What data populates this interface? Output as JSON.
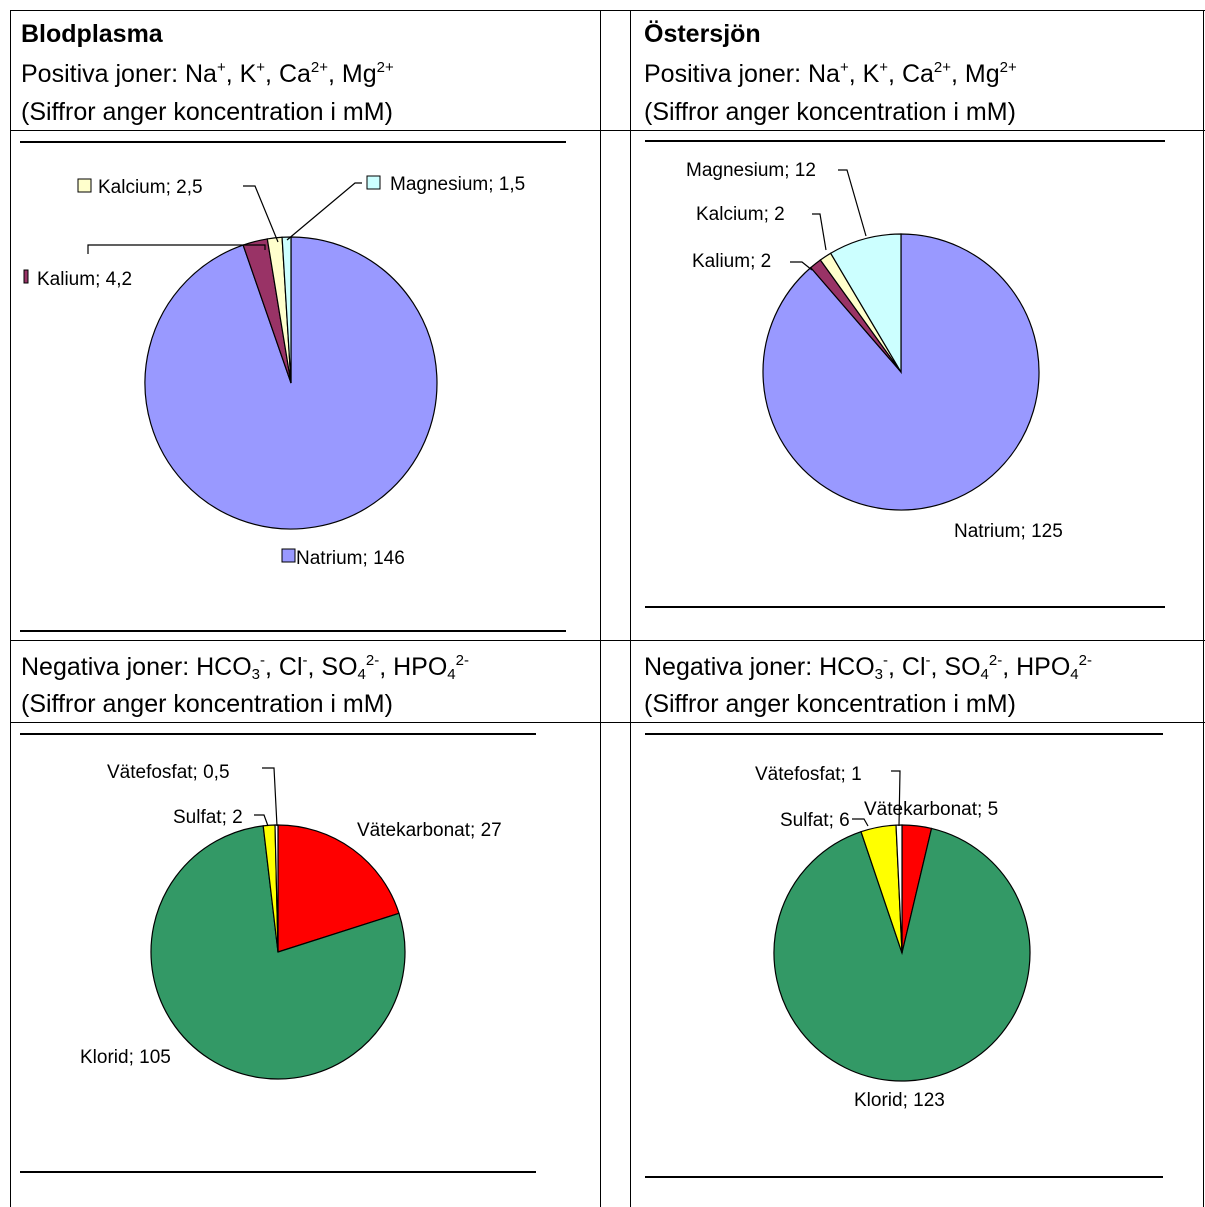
{
  "left_col": {
    "title": "Blodplasma",
    "pos_line": {
      "prefix": "Positiva joner: Na",
      "a": "+",
      "b": ", K",
      "c": "+",
      "d": ", Ca",
      "e": "2+",
      "f": ", Mg",
      "g": "2+"
    },
    "unit_note": "(Siffror anger koncentration i mM)",
    "neg_line": {
      "prefix": "Negativa joner: HCO",
      "s1": "3",
      "s1sup": "-",
      "t1": ", Cl",
      "t1sup": "-",
      "t2": ", SO",
      "s2": "4",
      "s2sup": "2-",
      "t3": ", HPO",
      "s3": "4",
      "s3sup": "2-"
    },
    "unit_note_2": "(Siffror anger koncentration i mM)"
  },
  "right_col": {
    "title": "Östersjön",
    "pos_line": {
      "prefix": "Positiva joner: Na",
      "a": "+",
      "b": ", K",
      "c": "+",
      "d": ", Ca",
      "e": "2+",
      "f": ", Mg",
      "g": "2+"
    },
    "unit_note": "(Siffror anger koncentration i mM)",
    "neg_line": {
      "prefix": "Negativa joner: HCO",
      "s1": "3",
      "s1sup": "-",
      "t1": ", Cl",
      "t1sup": "-",
      "t2": ", SO",
      "s2": "4",
      "s2sup": "2-",
      "t3": ", HPO",
      "s3": "4",
      "s3sup": "2-"
    },
    "unit_note_2": "(Siffror anger koncentration i mM)"
  },
  "chart_data": [
    {
      "type": "pie",
      "title": "",
      "slices": [
        {
          "label": "Natrium",
          "value": 146,
          "text": "Natrium; 146",
          "color": "#9999ff"
        },
        {
          "label": "Kalium",
          "value": 4.2,
          "text": "Kalium; 4,2",
          "color": "#993366"
        },
        {
          "label": "Kalcium",
          "value": 2.5,
          "text": "Kalcium; 2,5",
          "color": "#ffffcc"
        },
        {
          "label": "Magnesium",
          "value": 1.5,
          "text": "Magnesium; 1,5",
          "color": "#ccffff"
        }
      ]
    },
    {
      "type": "pie",
      "title": "",
      "slices": [
        {
          "label": "Natrium",
          "value": 125,
          "text": "Natrium; 125",
          "color": "#9999ff"
        },
        {
          "label": "Kalium",
          "value": 2,
          "text": "Kalium; 2",
          "color": "#993366"
        },
        {
          "label": "Kalcium",
          "value": 2,
          "text": "Kalcium; 2",
          "color": "#ffffcc"
        },
        {
          "label": "Magnesium",
          "value": 12,
          "text": "Magnesium; 12",
          "color": "#ccffff"
        }
      ]
    },
    {
      "type": "pie",
      "title": "",
      "slices": [
        {
          "label": "Vätekarbonat",
          "value": 27,
          "text": "Vätekarbonat; 27",
          "color": "#ff0000"
        },
        {
          "label": "Klorid",
          "value": 105,
          "text": "Klorid; 105",
          "color": "#339966"
        },
        {
          "label": "Sulfat",
          "value": 2,
          "text": "Sulfat; 2",
          "color": "#ffff00"
        },
        {
          "label": "Vätefosfat",
          "value": 0.5,
          "text": "Vätefosfat; 0,5",
          "color": "#ffffff"
        }
      ]
    },
    {
      "type": "pie",
      "title": "",
      "slices": [
        {
          "label": "Vätekarbonat",
          "value": 5,
          "text": "Vätekarbonat; 5",
          "color": "#ff0000"
        },
        {
          "label": "Klorid",
          "value": 123,
          "text": "Klorid; 123",
          "color": "#339966"
        },
        {
          "label": "Sulfat",
          "value": 6,
          "text": "Sulfat; 6",
          "color": "#ffff00"
        },
        {
          "label": "Vätefosfat",
          "value": 1,
          "text": "Vätefosfat; 1",
          "color": "#ffffff"
        }
      ]
    }
  ]
}
